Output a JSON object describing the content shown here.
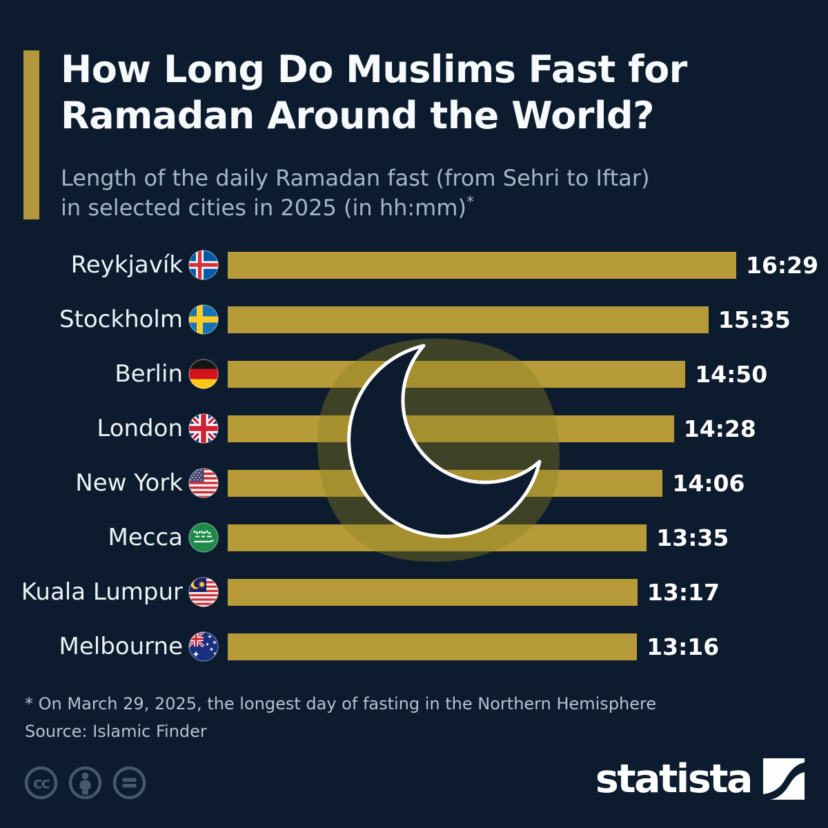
{
  "header": {
    "title_line1": "How Long Do Muslims Fast for",
    "title_line2": "Ramadan Around the World?",
    "subtitle_line1": "Length of the daily Ramadan fast (from Sehri to Iftar)",
    "subtitle_line2": "in selected cities in 2025 (in hh:mm)",
    "subtitle_footnote_marker": "*"
  },
  "chart_data": {
    "type": "bar",
    "orientation": "horizontal",
    "title": "How Long Do Muslims Fast for Ramadan Around the World?",
    "subtitle": "Length of the daily Ramadan fast (from Sehri to Iftar) in selected cities in 2025 (in hh:mm)*",
    "unit": "hh:mm",
    "grid": false,
    "legend": false,
    "xlim_minutes": [
      0,
      989
    ],
    "categories": [
      "Reykjavík",
      "Stockholm",
      "Berlin",
      "London",
      "New York",
      "Mecca",
      "Kuala Lumpur",
      "Melbourne"
    ],
    "values": [
      "16:29",
      "15:35",
      "14:50",
      "14:28",
      "14:06",
      "13:35",
      "13:17",
      "13:16"
    ],
    "values_minutes": [
      989,
      935,
      890,
      868,
      846,
      815,
      797,
      796
    ],
    "rows": [
      {
        "city": "Reykjavík",
        "country": "Iceland",
        "flag_icon": "iceland-flag-icon",
        "value": "16:29",
        "minutes": 989
      },
      {
        "city": "Stockholm",
        "country": "Sweden",
        "flag_icon": "sweden-flag-icon",
        "value": "15:35",
        "minutes": 935
      },
      {
        "city": "Berlin",
        "country": "Germany",
        "flag_icon": "germany-flag-icon",
        "value": "14:50",
        "minutes": 890
      },
      {
        "city": "London",
        "country": "United Kingdom",
        "flag_icon": "uk-flag-icon",
        "value": "14:28",
        "minutes": 868
      },
      {
        "city": "New York",
        "country": "United States",
        "flag_icon": "usa-flag-icon",
        "value": "14:06",
        "minutes": 846
      },
      {
        "city": "Mecca",
        "country": "Saudi Arabia",
        "flag_icon": "saudi-arabia-flag-icon",
        "value": "13:35",
        "minutes": 815
      },
      {
        "city": "Kuala Lumpur",
        "country": "Malaysia",
        "flag_icon": "malaysia-flag-icon",
        "value": "13:17",
        "minutes": 797
      },
      {
        "city": "Melbourne",
        "country": "Australia",
        "flag_icon": "australia-flag-icon",
        "value": "13:16",
        "minutes": 796
      }
    ],
    "decoration": "crescent-moon-icon"
  },
  "footer": {
    "footnote": "* On March 29, 2025, the longest day of fasting in the Northern Hemisphere",
    "source": "Source: Islamic Finder",
    "license_icons": [
      "creative-commons-icon",
      "attribution-icon",
      "equals-icon"
    ]
  },
  "branding": {
    "logo_text": "statista"
  },
  "colors": {
    "background": "#0c1b2d",
    "bar": "#b89b39",
    "accent_bar": "#b2973c",
    "title": "#f7fafc",
    "subtitle": "#a3b8c7",
    "city_label": "#edf3f8",
    "value": "#ffffff",
    "footnote": "#b5c4d2",
    "license_icon": "#46586c",
    "blob": "rgba(138,126,31,0.40)",
    "moon_outline": "#ffffff",
    "logo": "#fcfeff"
  }
}
